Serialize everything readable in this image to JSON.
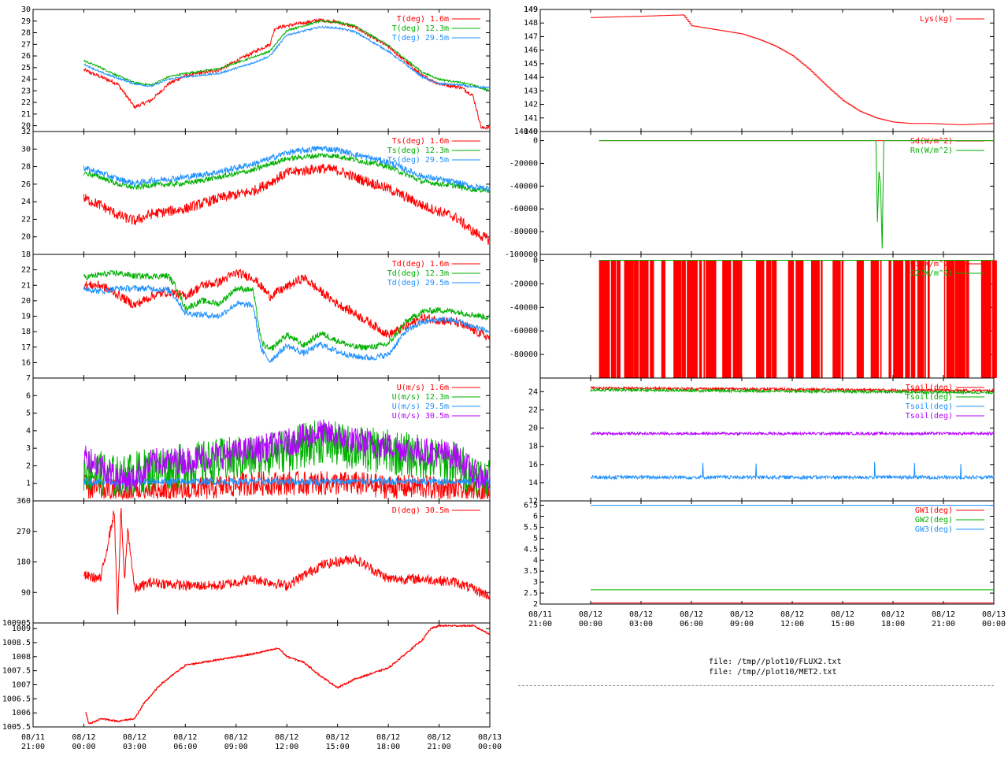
{
  "files": [
    "file: /tmp//plot10/FLUX2.txt",
    "file: /tmp//plot10/MET2.txt"
  ],
  "colors": {
    "red": "#ff0000",
    "green": "#00b000",
    "blue": "#1e90ff",
    "magenta": "#b400ff"
  },
  "x_ticks": [
    {
      "t": -3,
      "label": [
        "08/11",
        "21:00"
      ]
    },
    {
      "t": 0,
      "label": [
        "08/12",
        "00:00"
      ]
    },
    {
      "t": 3,
      "label": [
        "08/12",
        "03:00"
      ]
    },
    {
      "t": 6,
      "label": [
        "08/12",
        "06:00"
      ]
    },
    {
      "t": 9,
      "label": [
        "08/12",
        "09:00"
      ]
    },
    {
      "t": 12,
      "label": [
        "08/12",
        "12:00"
      ]
    },
    {
      "t": 15,
      "label": [
        "08/12",
        "15:00"
      ]
    },
    {
      "t": 18,
      "label": [
        "08/12",
        "18:00"
      ]
    },
    {
      "t": 21,
      "label": [
        "08/12",
        "21:00"
      ]
    },
    {
      "t": 24,
      "label": [
        "08/13",
        "00:00"
      ]
    }
  ],
  "chart_data": [
    {
      "id": "T",
      "type": "line",
      "ylim": [
        19.5,
        30
      ],
      "y_ticks": [
        20,
        21,
        22,
        23,
        24,
        25,
        26,
        27,
        28,
        29,
        30
      ],
      "series": [
        {
          "name": "T(deg)  1.6m",
          "color": "red",
          "noise": 0.15,
          "x": [
            0,
            1,
            2,
            3,
            4,
            5,
            6,
            8,
            10,
            11,
            11.3,
            12,
            14,
            15,
            16,
            18,
            20,
            21,
            22.3,
            23,
            23.5,
            24
          ],
          "y": [
            24.8,
            24.2,
            23.6,
            21.6,
            22.2,
            23.6,
            24.3,
            24.8,
            26.3,
            27.0,
            28.4,
            28.6,
            29.1,
            28.9,
            28.5,
            26.8,
            24.3,
            23.6,
            23.3,
            22.6,
            19.8,
            19.9
          ]
        },
        {
          "name": "T(deg) 12.3m",
          "color": "green",
          "noise": 0.08,
          "x": [
            0,
            1,
            2,
            3,
            4,
            5,
            6,
            8,
            10,
            11,
            12,
            14,
            15,
            16,
            18,
            20,
            21,
            22.3,
            23,
            24
          ],
          "y": [
            25.6,
            25.0,
            24.3,
            23.7,
            23.5,
            24.2,
            24.5,
            24.9,
            25.9,
            26.4,
            28.2,
            29.0,
            28.9,
            28.6,
            26.9,
            24.6,
            24.0,
            23.7,
            23.5,
            23.0
          ]
        },
        {
          "name": "T(deg) 29.5m",
          "color": "blue",
          "noise": 0.08,
          "x": [
            0,
            1,
            2,
            3,
            4,
            5,
            6,
            8,
            10,
            11,
            12,
            14,
            15,
            16,
            18,
            20,
            21,
            22.3,
            23,
            24
          ],
          "y": [
            25.3,
            24.6,
            24.1,
            23.6,
            23.4,
            24.0,
            24.2,
            24.5,
            25.4,
            26.0,
            27.8,
            28.5,
            28.4,
            28.1,
            26.4,
            24.2,
            23.6,
            23.5,
            23.3,
            23.3
          ]
        }
      ]
    },
    {
      "id": "Ts",
      "type": "line",
      "ylim": [
        18,
        32
      ],
      "y_ticks": [
        18,
        20,
        22,
        24,
        26,
        28,
        30,
        32
      ],
      "series": [
        {
          "name": "Ts(deg)  1.6m",
          "color": "red",
          "noise": 0.6,
          "x": [
            0,
            1,
            2,
            3,
            4,
            5,
            6,
            8,
            10,
            11,
            12,
            14,
            15,
            16,
            18,
            20,
            22,
            23,
            24
          ],
          "y": [
            24.4,
            23.6,
            22.5,
            21.8,
            22.6,
            22.9,
            23.2,
            24.4,
            25.2,
            26.2,
            27.3,
            27.8,
            27.6,
            26.8,
            25.5,
            23.6,
            22.2,
            20.6,
            19.6
          ]
        },
        {
          "name": "Ts(deg) 12.3m",
          "color": "green",
          "noise": 0.3,
          "x": [
            0,
            1,
            2,
            3,
            4,
            5,
            6,
            8,
            10,
            11,
            12,
            14,
            15,
            16,
            18,
            20,
            22,
            23,
            24
          ],
          "y": [
            27.3,
            26.8,
            26.0,
            25.6,
            25.9,
            26.0,
            26.1,
            26.8,
            27.6,
            28.3,
            28.9,
            29.3,
            29.2,
            28.8,
            28.0,
            26.3,
            25.8,
            25.4,
            25.3
          ]
        },
        {
          "name": "Ts(deg) 29.5m",
          "color": "blue",
          "noise": 0.35,
          "x": [
            0,
            1,
            2,
            3,
            4,
            5,
            6,
            8,
            10,
            11,
            12,
            14,
            15,
            16,
            18,
            20,
            22,
            23,
            24
          ],
          "y": [
            27.8,
            27.3,
            26.6,
            26.1,
            26.4,
            26.6,
            26.8,
            27.4,
            28.3,
            28.9,
            29.6,
            30.1,
            29.9,
            29.4,
            28.5,
            26.9,
            26.2,
            25.7,
            25.5
          ]
        }
      ]
    },
    {
      "id": "Td",
      "type": "line",
      "ylim": [
        15,
        23
      ],
      "y_ticks": [
        16,
        17,
        18,
        19,
        20,
        21,
        22
      ],
      "series": [
        {
          "name": "Td(deg)  1.6m",
          "color": "red",
          "noise": 0.3,
          "x": [
            0,
            1,
            2,
            3,
            4,
            5,
            6,
            7,
            8,
            9,
            10,
            11,
            12,
            13,
            14,
            15,
            16,
            17,
            18,
            19,
            20,
            22,
            24
          ],
          "y": [
            21.0,
            21.0,
            20.4,
            19.7,
            20.3,
            20.6,
            20.3,
            21.0,
            21.2,
            21.8,
            21.5,
            20.3,
            20.9,
            21.5,
            20.6,
            19.8,
            19.2,
            18.5,
            17.8,
            18.3,
            18.9,
            18.6,
            17.6
          ]
        },
        {
          "name": "Td(deg) 12.3m",
          "color": "green",
          "noise": 0.2,
          "x": [
            0,
            1,
            2,
            3,
            4,
            5,
            5.5,
            6,
            7,
            8,
            9,
            10,
            10.5,
            11,
            12,
            13,
            14,
            15,
            16,
            17,
            18,
            19,
            20,
            21,
            22,
            24
          ],
          "y": [
            21.5,
            21.7,
            21.8,
            21.6,
            21.6,
            21.6,
            20.8,
            19.5,
            20.0,
            19.8,
            20.8,
            20.7,
            17.3,
            16.8,
            17.8,
            17.1,
            17.9,
            17.4,
            17.0,
            17.0,
            17.2,
            18.6,
            19.3,
            19.4,
            19.3,
            18.9
          ]
        },
        {
          "name": "Td(deg) 29.5m",
          "color": "blue",
          "noise": 0.2,
          "x": [
            0,
            1,
            2,
            3,
            4,
            5,
            5.5,
            6,
            7,
            8,
            9,
            10,
            10.5,
            11,
            12,
            13,
            14,
            15,
            16,
            17,
            18,
            19,
            20,
            21,
            22,
            24
          ],
          "y": [
            20.8,
            20.6,
            20.8,
            20.8,
            20.8,
            20.7,
            20.1,
            19.2,
            19.1,
            19.0,
            19.8,
            19.7,
            16.8,
            16.1,
            17.1,
            16.6,
            17.2,
            16.7,
            16.4,
            16.3,
            16.5,
            18.0,
            18.6,
            18.8,
            18.7,
            18.0
          ]
        }
      ]
    },
    {
      "id": "U",
      "type": "line",
      "ylim": [
        0,
        7
      ],
      "y_ticks": [
        1,
        2,
        3,
        4,
        5,
        6,
        7
      ],
      "series": [
        {
          "name": "U(m/s)  1.6m",
          "color": "red",
          "noise": 0.7,
          "floor": 0.1,
          "x": [
            0,
            2,
            4,
            6,
            8,
            10,
            12,
            14,
            16,
            18,
            20,
            22,
            24
          ],
          "y": [
            0.8,
            0.5,
            0.5,
            0.6,
            0.8,
            1.0,
            1.0,
            1.0,
            1.0,
            0.8,
            0.8,
            0.6,
            0.4
          ]
        },
        {
          "name": "U(m/s) 12.3m",
          "color": "green",
          "noise": 1.3,
          "floor": 0.3,
          "x": [
            0,
            2,
            4,
            6,
            8,
            10,
            12,
            14,
            16,
            18,
            20,
            22,
            24
          ],
          "y": [
            1.8,
            1.3,
            1.8,
            2.0,
            2.3,
            2.5,
            2.9,
            3.4,
            3.0,
            2.8,
            2.5,
            2.1,
            1.0
          ]
        },
        {
          "name": "U(m/s) 29.5m",
          "color": "blue",
          "noise": 0.2,
          "x": [
            0,
            24
          ],
          "y": [
            1.1,
            1.1
          ]
        },
        {
          "name": "U(m/s) 30.5m",
          "color": "magenta",
          "noise": 0.8,
          "floor": 0.5,
          "x": [
            0,
            1,
            2,
            3,
            4,
            6,
            8,
            10,
            12,
            14,
            16,
            18,
            20,
            22,
            23,
            24
          ],
          "y": [
            2.6,
            2.0,
            1.3,
            1.3,
            2.2,
            2.3,
            2.6,
            2.9,
            3.3,
            3.9,
            3.4,
            3.1,
            2.8,
            2.6,
            1.6,
            1.2
          ]
        }
      ]
    },
    {
      "id": "D",
      "type": "line",
      "ylim": [
        0,
        360
      ],
      "y_ticks": [
        90,
        180,
        270,
        360
      ],
      "series": [
        {
          "name": "D(deg)  30.5m",
          "color": "red",
          "noise": 15,
          "x": [
            0,
            1,
            1.8,
            2.0,
            2.2,
            2.4,
            2.6,
            3.0,
            4.0,
            6.0,
            8.0,
            10.0,
            12.0,
            14.0,
            16.0,
            18.0,
            20.0,
            22.0,
            24.0
          ],
          "y": [
            140,
            130,
            330,
            20,
            340,
            120,
            280,
            100,
            120,
            110,
            110,
            130,
            110,
            170,
            190,
            130,
            130,
            120,
            80
          ]
        }
      ]
    },
    {
      "id": "P",
      "type": "line",
      "ylim": [
        1005.5,
        1009.2
      ],
      "step": true,
      "y_ticks": [
        1005.5,
        1006,
        1006.5,
        1007,
        1007.5,
        1008,
        1008.5,
        1009
      ],
      "y_top_label": "100905",
      "series": [
        {
          "name": "",
          "color": "red",
          "noise": 0.03,
          "x": [
            0.1,
            0.3,
            1.0,
            2.0,
            3.0,
            3.5,
            4.5,
            6.0,
            7.0,
            9.0,
            10.0,
            11.5,
            12.0,
            13.0,
            14.0,
            15.0,
            16.0,
            18.0,
            19.0,
            20.0,
            20.5,
            21.0,
            22.0,
            23.0,
            24.0
          ],
          "y": [
            1006.0,
            1005.6,
            1005.8,
            1005.7,
            1005.8,
            1006.3,
            1007.0,
            1007.7,
            1007.8,
            1008.0,
            1008.1,
            1008.3,
            1008.0,
            1007.8,
            1007.3,
            1006.9,
            1007.2,
            1007.6,
            1008.1,
            1008.6,
            1009.0,
            1009.1,
            1009.1,
            1009.1,
            1008.8
          ]
        }
      ]
    },
    {
      "id": "Lys",
      "type": "line",
      "ylim": [
        140,
        149
      ],
      "step": true,
      "y_ticks": [
        140,
        141,
        142,
        143,
        144,
        145,
        146,
        147,
        148,
        149
      ],
      "y_top_label": "149",
      "y_bottom_label": "14040",
      "series": [
        {
          "name": "Lys(kg)",
          "color": "red",
          "noise": 0,
          "x": [
            0,
            3,
            5.5,
            6,
            7,
            8,
            9,
            10,
            11,
            12,
            13,
            14,
            15,
            16,
            17,
            18,
            19,
            20,
            21,
            22,
            23,
            24
          ],
          "y": [
            148.4,
            148.5,
            148.6,
            147.8,
            147.6,
            147.4,
            147.2,
            146.8,
            146.3,
            145.6,
            144.6,
            143.4,
            142.3,
            141.5,
            141.0,
            140.7,
            140.6,
            140.6,
            140.55,
            140.5,
            140.55,
            140.6
          ]
        }
      ]
    },
    {
      "id": "SdRn",
      "type": "line",
      "ylim": [
        -100000,
        8000
      ],
      "y_ticks": [
        -100000,
        -80000,
        -60000,
        -40000,
        -20000,
        0
      ],
      "series": [
        {
          "name": "Sd(W/m^2)",
          "color": "red",
          "noise": 0,
          "x": [
            0.5,
            24
          ],
          "y": [
            0,
            0
          ]
        },
        {
          "name": "Rn(W/m^2)",
          "color": "green",
          "noise": 0,
          "x": [
            0.5,
            17.0,
            17.1,
            17.15,
            17.2,
            17.3,
            17.35,
            17.4,
            24
          ],
          "y": [
            0,
            0,
            -100000,
            5000,
            -100000,
            4000,
            -100000,
            0,
            0
          ]
        }
      ]
    },
    {
      "id": "G",
      "type": "line",
      "ylim": [
        -100000,
        5000
      ],
      "bars": true,
      "y_ticks": [
        -80000,
        -60000,
        -40000,
        -20000,
        0
      ],
      "series": [
        {
          "name": "G1(W/m^2)",
          "color": "red",
          "noise": 0,
          "x": [
            0.5,
            24
          ],
          "y": [
            0,
            0
          ]
        },
        {
          "name": "G2(W/m^2)",
          "color": "green",
          "noise": 0,
          "x": [
            0.5,
            24
          ],
          "y": [
            0,
            0
          ]
        }
      ]
    },
    {
      "id": "Tsoil",
      "type": "line",
      "ylim": [
        12,
        25.5
      ],
      "y_ticks": [
        12,
        14,
        16,
        18,
        20,
        22,
        24
      ],
      "series": [
        {
          "name": "Tsoil(deg)",
          "color": "red",
          "noise": 0.15,
          "x": [
            0,
            24
          ],
          "y": [
            24.4,
            24.1
          ]
        },
        {
          "name": "Tsoil(deg)",
          "color": "green",
          "noise": 0.15,
          "x": [
            0,
            24
          ],
          "y": [
            24.2,
            23.9
          ]
        },
        {
          "name": "Tsoil(deg)",
          "color": "blue",
          "noise": 0.2,
          "spikes": true,
          "x": [
            0,
            24
          ],
          "y": [
            14.6,
            14.6
          ]
        },
        {
          "name": "Tsoil(deg)",
          "color": "magenta",
          "noise": 0.15,
          "x": [
            0,
            24
          ],
          "y": [
            19.4,
            19.4
          ]
        }
      ]
    },
    {
      "id": "GW",
      "type": "line",
      "ylim": [
        2,
        6.7
      ],
      "y_ticks": [
        2,
        2.5,
        3,
        3.5,
        4,
        4.5,
        5,
        5.5,
        6,
        6.5
      ],
      "series": [
        {
          "name": "GW1(deg)",
          "color": "red",
          "noise": 0,
          "x": [
            0,
            24
          ],
          "y": [
            2.05,
            2.05
          ]
        },
        {
          "name": "GW2(deg)",
          "color": "green",
          "noise": 0,
          "x": [
            0,
            24
          ],
          "y": [
            2.65,
            2.65
          ]
        },
        {
          "name": "GW3(deg)",
          "color": "blue",
          "noise": 0,
          "x": [
            0,
            24
          ],
          "y": [
            6.5,
            6.5
          ]
        }
      ]
    }
  ]
}
